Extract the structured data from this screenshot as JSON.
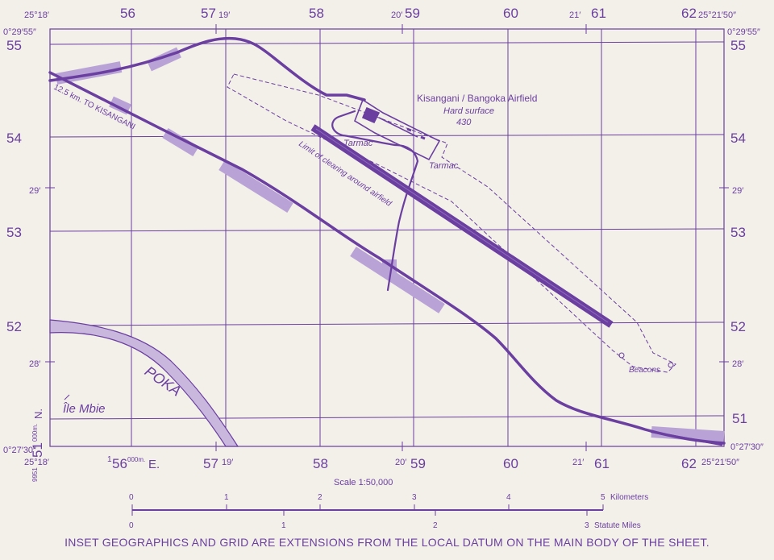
{
  "map": {
    "top_grid_labels": [
      "56",
      "57",
      "58",
      "59",
      "60",
      "61",
      "62"
    ],
    "bottom_grid_labels": [
      "56",
      "57",
      "58",
      "59",
      "60",
      "61",
      "62"
    ],
    "left_grid_labels": [
      "55",
      "54",
      "53",
      "52",
      "51"
    ],
    "right_grid_labels": [
      "55",
      "54",
      "53",
      "52",
      "51"
    ],
    "corner_labels": {
      "top_left_lon": "25°18′",
      "top_right_lon": "25°21′50″",
      "top_left_lat": "0°29′55″",
      "top_right_lat": "0°29′55″",
      "bottom_left_lat": "0°27′30″",
      "bottom_right_lat": "0°27′30″",
      "bottom_left_lon": "25°18′",
      "bottom_right_lon": "25°21′50″"
    },
    "minute_ticks": {
      "top_19": "19′",
      "top_20": "20′",
      "top_21": "21′",
      "bottom_19": "19′",
      "bottom_20": "20′",
      "bottom_21": "21′",
      "left_29": "29′",
      "left_28": "28′",
      "right_29": "29′",
      "right_28": "28′"
    },
    "easting_label": {
      "prefix": "1",
      "value": "56",
      "suffix": "000m.",
      "dir": "E."
    },
    "northing_label": {
      "prefix": "9951",
      "suffix": "000m.",
      "dir": "N."
    },
    "airfield": {
      "name": "Kisangani / Bangoka Airfield",
      "surface": "Hard surface",
      "elevation": "430"
    },
    "labels": {
      "tarmac_1": "Tarmac",
      "tarmac_2": "Tarmac",
      "clearing": "Limit of clearing around airfield",
      "road": "12.5 km. TO KISANGANI",
      "beacons": "Beacons",
      "river": "POKA",
      "island": "Île Mbie"
    },
    "colors": {
      "ink": "#6a3fa0",
      "background": "#f3efe9",
      "highlight": "#b9a2d6"
    }
  },
  "scale": {
    "title": "Scale 1:50,000",
    "km_ticks": [
      "0",
      "1",
      "2",
      "3",
      "4",
      "5"
    ],
    "km_unit": "Kilometers",
    "mile_ticks": [
      "0",
      "1",
      "2",
      "3"
    ],
    "mile_unit": "Statute Miles"
  },
  "footer": "INSET GEOGRAPHICS AND GRID ARE EXTENSIONS FROM THE LOCAL DATUM ON THE MAIN BODY OF THE SHEET."
}
